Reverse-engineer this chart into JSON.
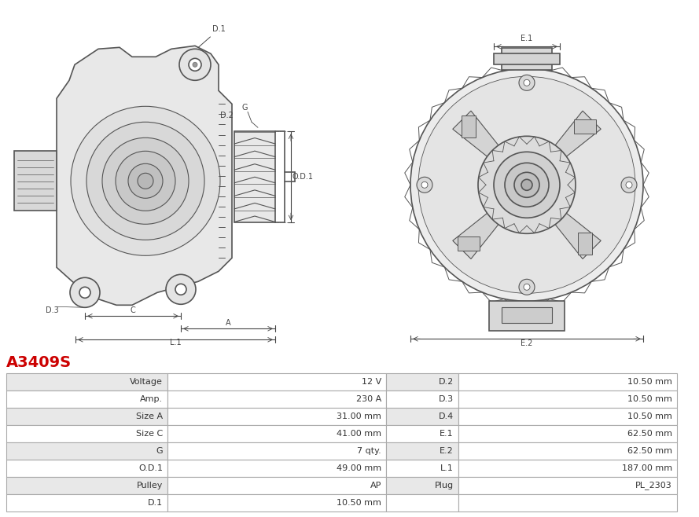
{
  "title": "A3409S",
  "title_color": "#cc0000",
  "background_color": "#ffffff",
  "table": {
    "left_col": [
      "Voltage",
      "Amp.",
      "Size A",
      "Size C",
      "G",
      "O.D.1",
      "Pulley",
      "D.1"
    ],
    "left_val": [
      "12 V",
      "230 A",
      "31.00 mm",
      "41.00 mm",
      "7 qty.",
      "49.00 mm",
      "AP",
      "10.50 mm"
    ],
    "right_col": [
      "D.2",
      "D.3",
      "D.4",
      "E.1",
      "E.2",
      "L.1",
      "Plug",
      ""
    ],
    "right_val": [
      "10.50 mm",
      "10.50 mm",
      "10.50 mm",
      "62.50 mm",
      "62.50 mm",
      "187.00 mm",
      "PL_2303",
      ""
    ]
  },
  "row_colors": [
    "#e8e8e8",
    "#ffffff"
  ],
  "dim_color": "#444444",
  "line_color": "#555555"
}
